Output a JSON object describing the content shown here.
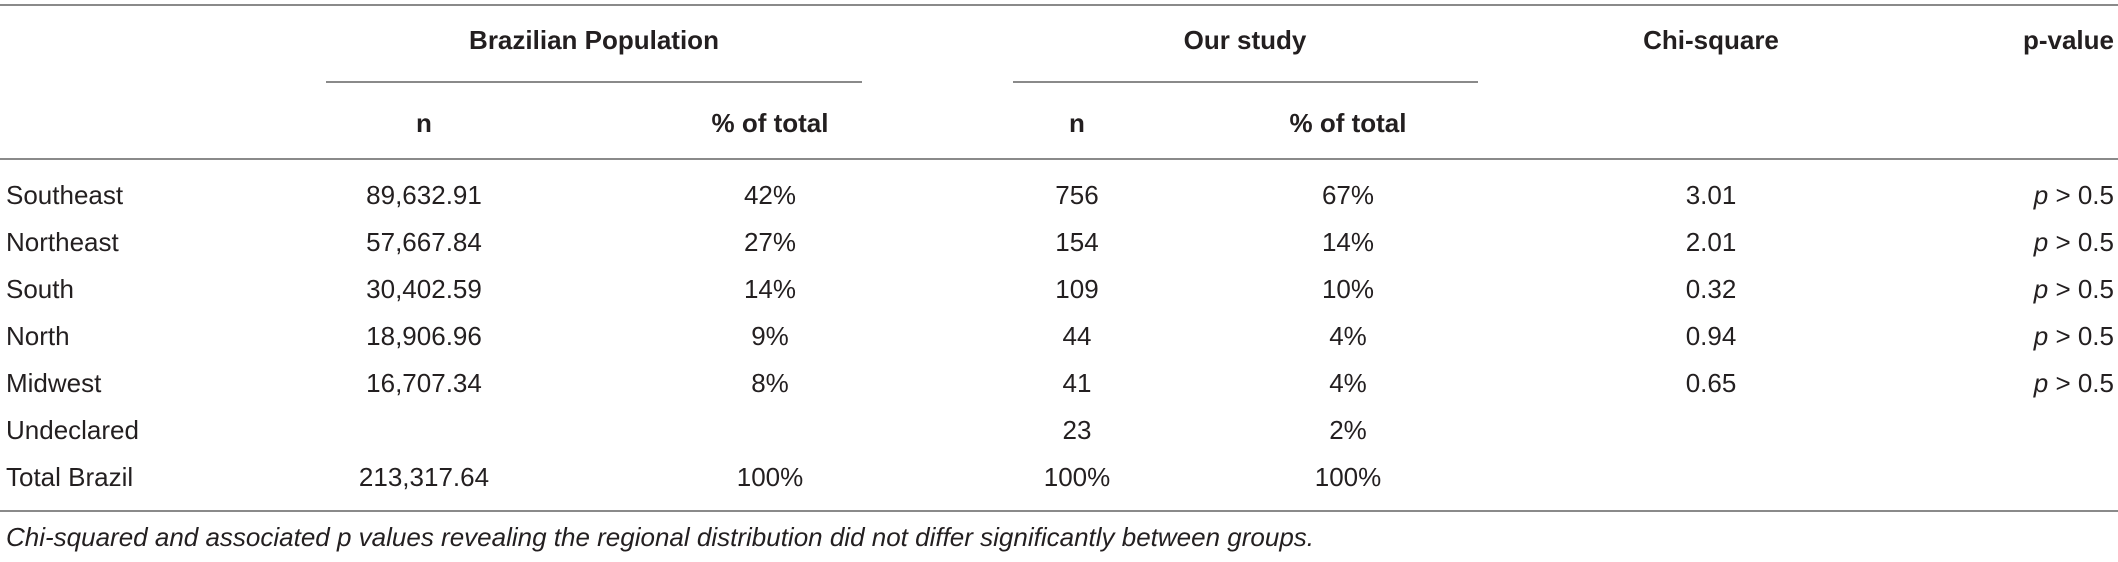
{
  "headers": {
    "group1": "Brazilian Population",
    "group2": "Our study",
    "chi": "Chi-square",
    "p": "p-value",
    "n1": "n",
    "pct1": "% of total",
    "n2": "n",
    "pct2": "% of total"
  },
  "rows": [
    {
      "region": "Southeast",
      "bp_n": "89,632.91",
      "bp_pct": "42%",
      "os_n": "756",
      "os_pct": "67%",
      "chi": "3.01",
      "p_sym": "p",
      "p_rest": "> 0.5"
    },
    {
      "region": "Northeast",
      "bp_n": "57,667.84",
      "bp_pct": "27%",
      "os_n": "154",
      "os_pct": "14%",
      "chi": "2.01",
      "p_sym": "p",
      "p_rest": "> 0.5"
    },
    {
      "region": "South",
      "bp_n": "30,402.59",
      "bp_pct": "14%",
      "os_n": "109",
      "os_pct": "10%",
      "chi": "0.32",
      "p_sym": "p",
      "p_rest": "> 0.5"
    },
    {
      "region": "North",
      "bp_n": "18,906.96",
      "bp_pct": "9%",
      "os_n": "44",
      "os_pct": "4%",
      "chi": "0.94",
      "p_sym": "p",
      "p_rest": "> 0.5"
    },
    {
      "region": "Midwest",
      "bp_n": "16,707.34",
      "bp_pct": "8%",
      "os_n": "41",
      "os_pct": "4%",
      "chi": "0.65",
      "p_sym": "p",
      "p_rest": "> 0.5"
    },
    {
      "region": "Undeclared",
      "bp_n": "",
      "bp_pct": "",
      "os_n": "23",
      "os_pct": "2%",
      "chi": "",
      "p_sym": "",
      "p_rest": ""
    },
    {
      "region": "Total Brazil",
      "bp_n": "213,317.64",
      "bp_pct": "100%",
      "os_n": "100%",
      "os_pct": "100%",
      "chi": "",
      "p_sym": "",
      "p_rest": ""
    }
  ],
  "footnote": "Chi-squared and associated p values revealing the regional distribution did not differ significantly between groups."
}
